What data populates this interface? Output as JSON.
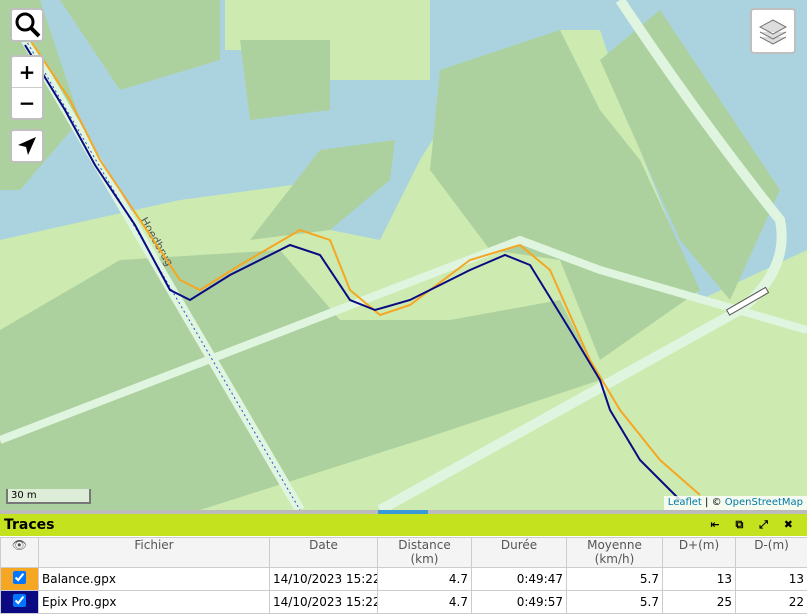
{
  "map": {
    "street_label": "Hoedbrug",
    "zoom_in": "+",
    "zoom_out": "−",
    "scale": "30 m",
    "attribution": {
      "leaflet": "Leaflet",
      "separator": "| ©",
      "osm": "OpenStreetMap"
    }
  },
  "panel": {
    "title": "Traces",
    "headers": [
      {
        "title": "Fichier"
      },
      {
        "title": "Date"
      },
      {
        "title": "Distance",
        "sub": "(km)"
      },
      {
        "title": "Durée"
      },
      {
        "title": "Moyenne",
        "sub": "(km/h)"
      },
      {
        "title": "D+(m)"
      },
      {
        "title": "D-(m)"
      }
    ],
    "rows": [
      {
        "file": "Balance.gpx",
        "color": "#f5a623",
        "checked": true,
        "date": "14/10/2023 15:22",
        "distance": 4.7,
        "duration": "0:49:47",
        "average": 5.7,
        "d_plus": 13,
        "d_minus": 13
      },
      {
        "file": "Epix Pro.gpx",
        "color": "#0a0a82",
        "checked": true,
        "date": "14/10/2023 15:22",
        "distance": 4.7,
        "duration": "0:49:57",
        "average": 5.7,
        "d_plus": 25,
        "d_minus": 22
      }
    ]
  }
}
